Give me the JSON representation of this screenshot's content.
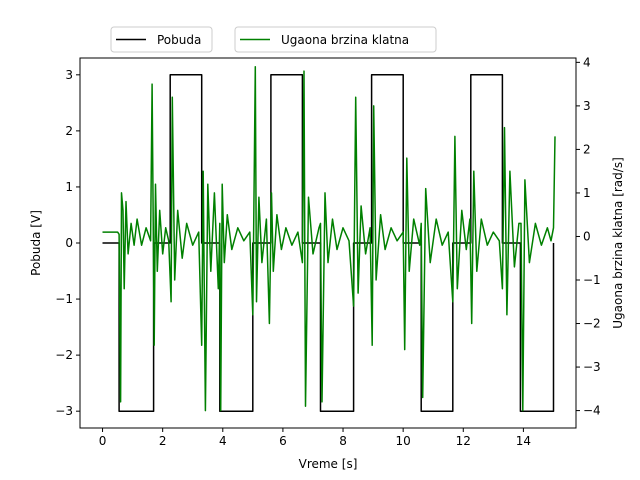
{
  "chart_data": {
    "type": "line",
    "xlabel": "Vreme [s]",
    "ylabel_left": "Pobuda [V]",
    "ylabel_right": "Ugaona brzina klatna [rad/s]",
    "xlim": [
      -0.75,
      15.75
    ],
    "ylim_left": [
      -3.3,
      3.3
    ],
    "ylim_right": [
      -4.4,
      4.1
    ],
    "x_ticks": [
      0,
      2,
      4,
      6,
      8,
      10,
      12,
      14
    ],
    "y_left_ticks": [
      -3,
      -2,
      -1,
      0,
      1,
      2,
      3
    ],
    "y_right_ticks": [
      -4,
      -3,
      -2,
      -1,
      0,
      1,
      2,
      3,
      4
    ],
    "grid": false,
    "legend_placement": "above plot, top-left",
    "series": [
      {
        "name": "Pobuda",
        "axis": "left",
        "color": "#000000",
        "x": [
          0,
          0.55,
          0.55,
          1.7,
          1.7,
          2.25,
          2.25,
          3.3,
          3.3,
          3.9,
          3.9,
          5.0,
          5.0,
          5.6,
          5.6,
          6.65,
          6.65,
          7.25,
          7.25,
          8.35,
          8.35,
          8.95,
          8.95,
          10.0,
          10.0,
          10.6,
          10.6,
          11.65,
          11.65,
          12.25,
          12.25,
          13.3,
          13.3,
          13.9,
          13.9,
          15.0,
          15.0
        ],
        "values": [
          0,
          0,
          -3,
          -3,
          0,
          0,
          3,
          3,
          0,
          0,
          -3,
          -3,
          0,
          0,
          3,
          3,
          0,
          0,
          -3,
          -3,
          0,
          0,
          3,
          3,
          0,
          0,
          -3,
          -3,
          0,
          0,
          3,
          3,
          0,
          0,
          -3,
          -3,
          0
        ]
      },
      {
        "name": "Ugaona brzina klatna",
        "axis": "right",
        "color": "#008000",
        "x": [
          0,
          0.3,
          0.5,
          0.55,
          0.6,
          0.63,
          0.68,
          0.72,
          0.78,
          0.85,
          0.95,
          1.05,
          1.15,
          1.3,
          1.45,
          1.6,
          1.65,
          1.72,
          1.76,
          1.82,
          1.9,
          2.0,
          2.1,
          2.2,
          2.28,
          2.32,
          2.4,
          2.5,
          2.65,
          2.8,
          3.0,
          3.2,
          3.3,
          3.35,
          3.42,
          3.5,
          3.6,
          3.72,
          3.85,
          3.9,
          3.93,
          3.98,
          4.05,
          4.15,
          4.3,
          4.5,
          4.7,
          4.9,
          5.0,
          5.08,
          5.12,
          5.2,
          5.3,
          5.45,
          5.55,
          5.62,
          5.68,
          5.8,
          5.95,
          6.1,
          6.3,
          6.5,
          6.65,
          6.7,
          6.75,
          6.85,
          7.0,
          7.2,
          7.25,
          7.3,
          7.4,
          7.5,
          7.65,
          7.8,
          8.0,
          8.2,
          8.35,
          8.42,
          8.5,
          8.6,
          8.75,
          8.9,
          8.97,
          9.02,
          9.1,
          9.25,
          9.4,
          9.6,
          9.8,
          10.0,
          10.05,
          10.12,
          10.2,
          10.35,
          10.55,
          10.6,
          10.65,
          10.75,
          10.9,
          11.1,
          11.3,
          11.5,
          11.65,
          11.72,
          11.8,
          11.95,
          12.1,
          12.22,
          12.28,
          12.35,
          12.45,
          12.6,
          12.8,
          13.0,
          13.2,
          13.3,
          13.37,
          13.45,
          13.55,
          13.7,
          13.85,
          13.92,
          13.98,
          14.05,
          14.2,
          14.4,
          14.6,
          14.8,
          14.92,
          15.0,
          15.05
        ],
        "values": [
          0.1,
          0.1,
          0.1,
          0.05,
          -3.8,
          1.0,
          0.6,
          -1.2,
          0.8,
          -0.4,
          0.3,
          -0.2,
          0.4,
          -0.2,
          0.2,
          -0.1,
          3.5,
          -2.5,
          1.2,
          -0.8,
          0.6,
          -0.4,
          0.2,
          -0.1,
          -1.5,
          3.2,
          -1.0,
          0.6,
          -0.5,
          0.3,
          -0.2,
          0.1,
          -2.5,
          1.5,
          -4.0,
          1.2,
          -0.8,
          1.0,
          -1.2,
          0.3,
          -4.0,
          1.2,
          -0.6,
          0.5,
          -0.3,
          0.2,
          -0.1,
          0.1,
          -1.8,
          3.9,
          -1.5,
          0.9,
          -0.6,
          0.4,
          -2.0,
          1.0,
          -0.8,
          0.5,
          -0.3,
          0.2,
          -0.2,
          0.1,
          -0.6,
          3.8,
          -3.9,
          0.9,
          -0.4,
          0.2,
          0.3,
          -3.8,
          1.0,
          -0.6,
          0.4,
          -0.3,
          0.2,
          -0.1,
          -1.6,
          3.2,
          -1.3,
          0.7,
          -0.4,
          0.2,
          -2.5,
          3.0,
          -1.0,
          0.5,
          -0.3,
          0.2,
          -0.1,
          0.1,
          -2.6,
          1.8,
          -0.8,
          0.4,
          -0.2,
          0.3,
          -3.7,
          1.1,
          -0.6,
          0.4,
          -0.2,
          0.1,
          -1.5,
          2.3,
          -1.2,
          0.6,
          -0.3,
          0.4,
          -2.0,
          1.5,
          -0.8,
          0.4,
          -0.2,
          0.1,
          -0.1,
          -1.2,
          2.5,
          -1.8,
          1.5,
          -0.7,
          0.3,
          0.3,
          -4.0,
          1.3,
          -0.6,
          0.3,
          -0.2,
          0.2,
          -0.1,
          0.2,
          2.3
        ]
      }
    ]
  }
}
